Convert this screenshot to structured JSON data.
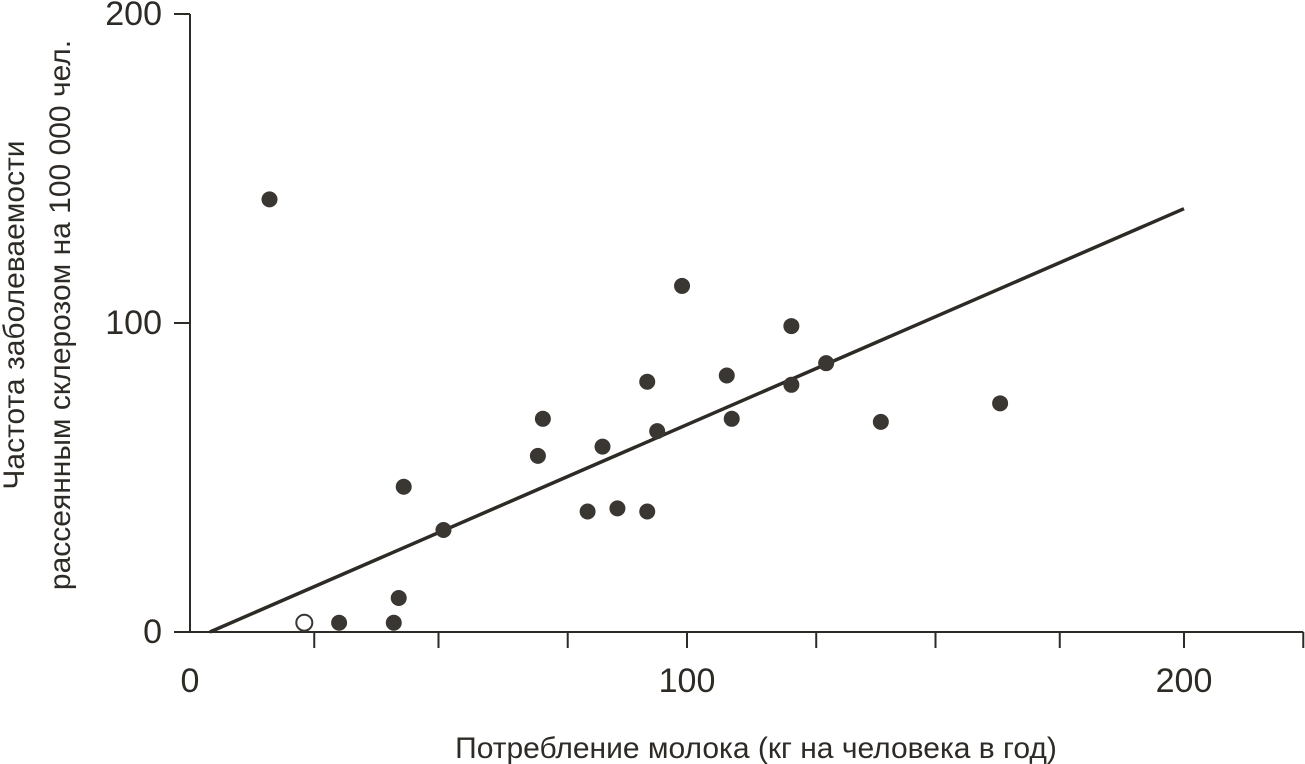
{
  "colors": {
    "ink": "#2e2a26",
    "point": "#3a3632",
    "open_point_fill": "#ffffff"
  },
  "chart_data": {
    "type": "scatter",
    "title": "",
    "xlabel": "Потребление молока (кг на человека в год)",
    "ylabel_lines": [
      "Частота заболеваемости",
      "рассеянным склерозом на 100 000 чел."
    ],
    "xlim": [
      0,
      224
    ],
    "ylim": [
      0,
      200
    ],
    "x_ticks": [
      0,
      100,
      200
    ],
    "x_tick_labels": [
      "0",
      "100",
      "200"
    ],
    "x_minor_ticks": [
      25,
      50,
      76,
      126,
      150,
      175,
      224
    ],
    "y_ticks": [
      0,
      100,
      200
    ],
    "y_tick_labels": [
      "0",
      "100",
      "200"
    ],
    "grid": false,
    "legend": "none",
    "series": [
      {
        "marker": "filled-circle",
        "points": [
          {
            "x": 16,
            "y": 140
          },
          {
            "x": 30,
            "y": 3
          },
          {
            "x": 41,
            "y": 3
          },
          {
            "x": 42,
            "y": 11
          },
          {
            "x": 43,
            "y": 47
          },
          {
            "x": 51,
            "y": 33
          },
          {
            "x": 70,
            "y": 57
          },
          {
            "x": 71,
            "y": 69
          },
          {
            "x": 80,
            "y": 39
          },
          {
            "x": 83,
            "y": 60
          },
          {
            "x": 86,
            "y": 40
          },
          {
            "x": 92,
            "y": 81
          },
          {
            "x": 92,
            "y": 39
          },
          {
            "x": 94,
            "y": 65
          },
          {
            "x": 99,
            "y": 112
          },
          {
            "x": 108,
            "y": 83
          },
          {
            "x": 109,
            "y": 69
          },
          {
            "x": 121,
            "y": 99
          },
          {
            "x": 121,
            "y": 80
          },
          {
            "x": 128,
            "y": 87
          },
          {
            "x": 139,
            "y": 68
          },
          {
            "x": 163,
            "y": 74
          }
        ]
      },
      {
        "marker": "open-circle",
        "points": [
          {
            "x": 23,
            "y": 3
          }
        ]
      }
    ],
    "trendline": {
      "x": [
        4,
        200
      ],
      "y": [
        0,
        137
      ]
    }
  }
}
